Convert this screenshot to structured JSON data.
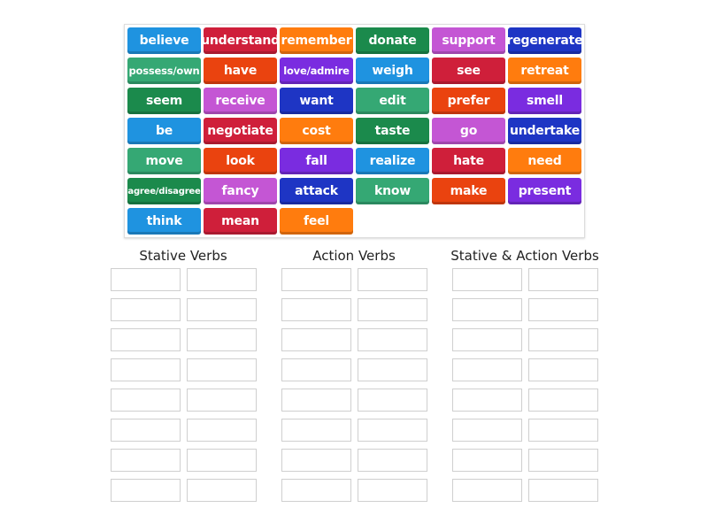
{
  "colors": {
    "blue": "#1f93e0",
    "red": "#cf1f3a",
    "orange": "#ff7c0e",
    "dark_green": "#1b8a4c",
    "magenta": "#c456d4",
    "dark_blue": "#1e35c4",
    "green": "#35a874",
    "orange_red": "#ea430f",
    "purple": "#7a2ce0"
  },
  "tiles": [
    {
      "label": "believe",
      "color": "blue"
    },
    {
      "label": "understand",
      "color": "red"
    },
    {
      "label": "remember",
      "color": "orange"
    },
    {
      "label": "donate",
      "color": "dark_green"
    },
    {
      "label": "support",
      "color": "magenta"
    },
    {
      "label": "regenerate",
      "color": "dark_blue"
    },
    {
      "label": "possess/own",
      "color": "green"
    },
    {
      "label": "have",
      "color": "orange_red"
    },
    {
      "label": "love/admire",
      "color": "purple"
    },
    {
      "label": "weigh",
      "color": "blue"
    },
    {
      "label": "see",
      "color": "red"
    },
    {
      "label": "retreat",
      "color": "orange"
    },
    {
      "label": "seem",
      "color": "dark_green"
    },
    {
      "label": "receive",
      "color": "magenta"
    },
    {
      "label": "want",
      "color": "dark_blue"
    },
    {
      "label": "edit",
      "color": "green"
    },
    {
      "label": "prefer",
      "color": "orange_red"
    },
    {
      "label": "smell",
      "color": "purple"
    },
    {
      "label": "be",
      "color": "blue"
    },
    {
      "label": "negotiate",
      "color": "red"
    },
    {
      "label": "cost",
      "color": "orange"
    },
    {
      "label": "taste",
      "color": "dark_green"
    },
    {
      "label": "go",
      "color": "magenta"
    },
    {
      "label": "undertake",
      "color": "dark_blue"
    },
    {
      "label": "move",
      "color": "green"
    },
    {
      "label": "look",
      "color": "orange_red"
    },
    {
      "label": "fall",
      "color": "purple"
    },
    {
      "label": "realize",
      "color": "blue"
    },
    {
      "label": "hate",
      "color": "red"
    },
    {
      "label": "need",
      "color": "orange"
    },
    {
      "label": "agree/disagree",
      "color": "dark_green"
    },
    {
      "label": "fancy",
      "color": "magenta"
    },
    {
      "label": "attack",
      "color": "dark_blue"
    },
    {
      "label": "know",
      "color": "green"
    },
    {
      "label": "make",
      "color": "orange_red"
    },
    {
      "label": "present",
      "color": "purple"
    },
    {
      "label": "think",
      "color": "blue"
    },
    {
      "label": "mean",
      "color": "red"
    },
    {
      "label": "feel",
      "color": "orange"
    }
  ],
  "groups": [
    {
      "title": "Stative Verbs"
    },
    {
      "title": "Action Verbs"
    },
    {
      "title": "Stative & Action Verbs"
    }
  ]
}
